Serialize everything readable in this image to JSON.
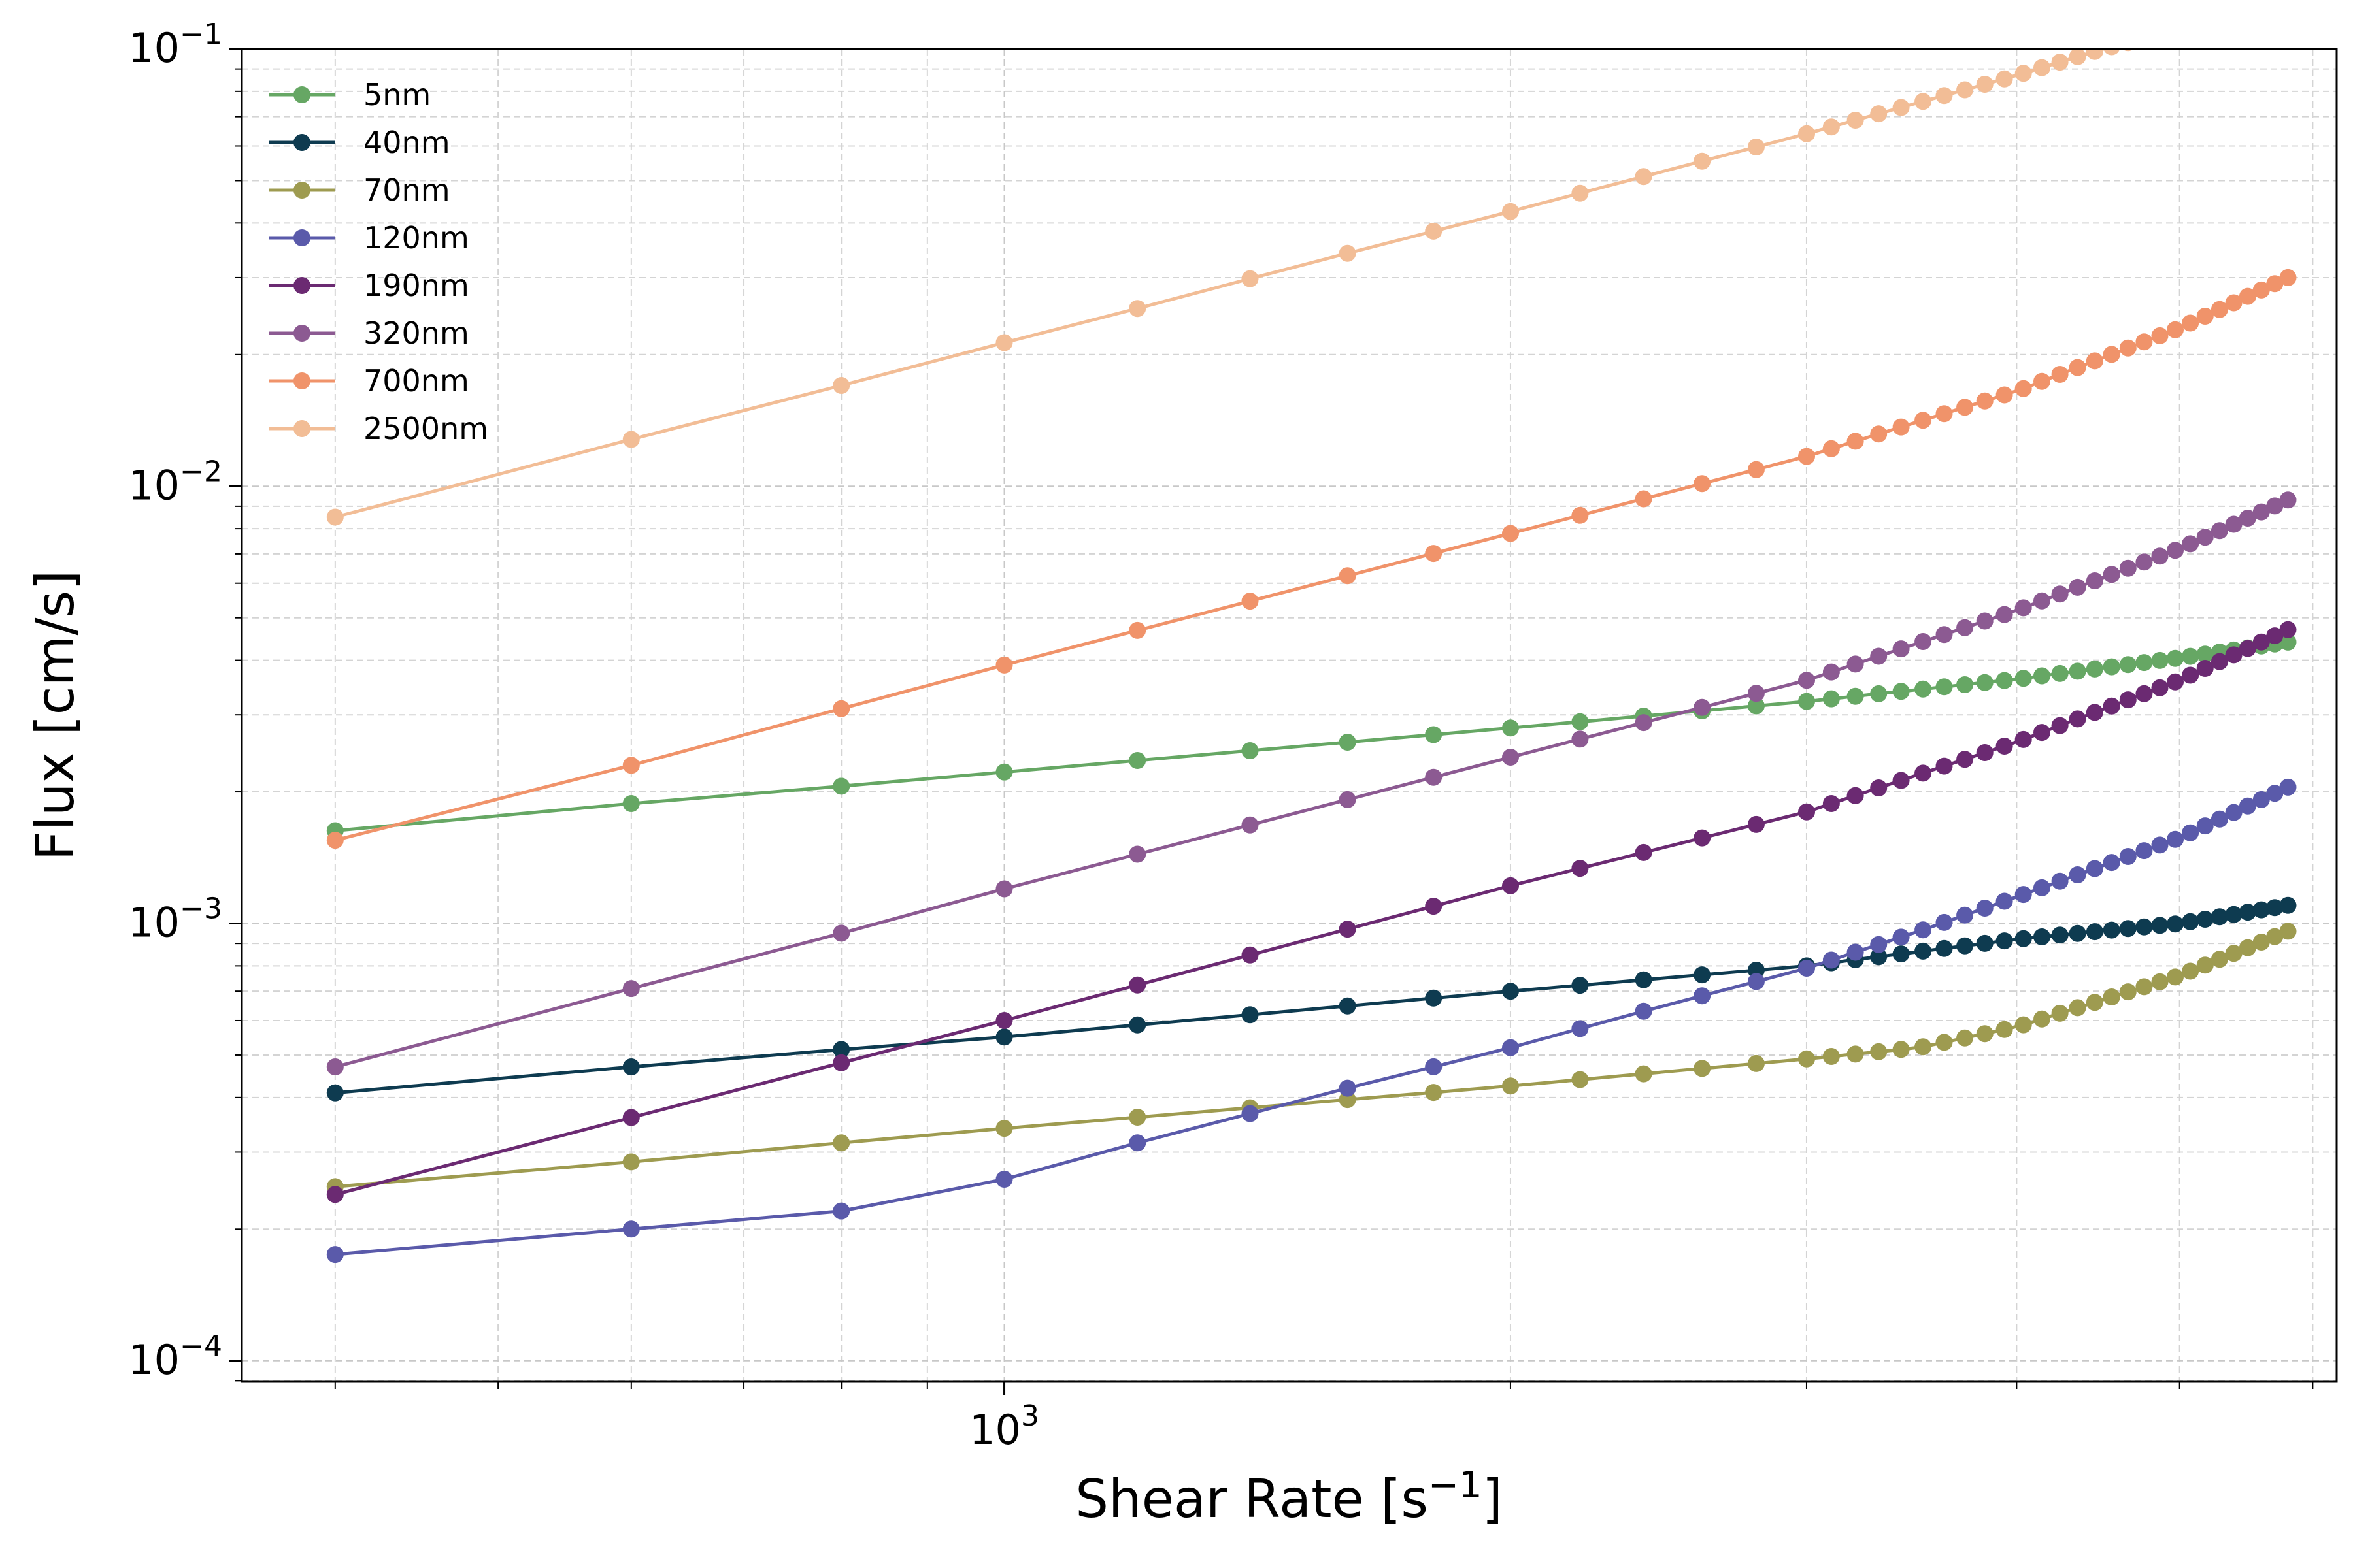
{
  "chart_data": {
    "type": "line",
    "xlabel": "Shear Rate [s",
    "xlabel_sup": "−1",
    "xlabel_end": "]",
    "ylabel": "Flux [cm/s]",
    "xscale": "log",
    "yscale": "log",
    "xlim": [
      352,
      6200
    ],
    "ylim": [
      8.95e-05,
      0.1
    ],
    "grid": true,
    "legend_position": "top-left",
    "x_ticks": [
      {
        "value": 1000,
        "base": "10",
        "exp": "3"
      }
    ],
    "y_ticks": [
      {
        "value": 0.0001,
        "base": "10",
        "exp": "−4"
      },
      {
        "value": 0.001,
        "base": "10",
        "exp": "−3"
      },
      {
        "value": 0.01,
        "base": "10",
        "exp": "−2"
      },
      {
        "value": 0.1,
        "base": "10",
        "exp": "−1"
      }
    ],
    "series": [
      {
        "name": "5nm",
        "color": "#66a764",
        "x_start": 400,
        "dense_from": 3000,
        "dense_to": 5800,
        "dense_count": 28,
        "anchors": [
          [
            400,
            0.00163
          ],
          [
            600,
            0.00188
          ],
          [
            800,
            0.00206
          ],
          [
            1000,
            0.00222
          ],
          [
            2000,
            0.0028
          ],
          [
            3000,
            0.00322
          ],
          [
            4000,
            0.00362
          ],
          [
            5000,
            0.00405
          ],
          [
            5800,
            0.0044
          ]
        ]
      },
      {
        "name": "40nm",
        "color": "#0e3b50",
        "x_start": 400,
        "dense_from": 3000,
        "dense_to": 5800,
        "dense_count": 28,
        "anchors": [
          [
            400,
            0.00041
          ],
          [
            600,
            0.00047
          ],
          [
            800,
            0.000515
          ],
          [
            1000,
            0.00055
          ],
          [
            2000,
            0.0007
          ],
          [
            3000,
            0.0008
          ],
          [
            4000,
            0.00092
          ],
          [
            5000,
            0.001
          ],
          [
            5800,
            0.0011
          ]
        ]
      },
      {
        "name": "70nm",
        "color": "#9e9b50",
        "x_start": 400,
        "dense_from": 3000,
        "dense_to": 5800,
        "dense_count": 28,
        "anchors": [
          [
            400,
            0.00025
          ],
          [
            600,
            0.000285
          ],
          [
            800,
            0.000315
          ],
          [
            1000,
            0.00034
          ],
          [
            2000,
            0.000425
          ],
          [
            3000,
            0.00049
          ],
          [
            3500,
            0.00052
          ],
          [
            4000,
            0.00058
          ],
          [
            5000,
            0.00076
          ],
          [
            5800,
            0.00096
          ]
        ]
      },
      {
        "name": "120nm",
        "color": "#5a5aaa",
        "x_start": 400,
        "dense_from": 3000,
        "dense_to": 5800,
        "dense_count": 28,
        "anchors": [
          [
            400,
            0.000175
          ],
          [
            600,
            0.0002
          ],
          [
            800,
            0.00022
          ],
          [
            1000,
            0.00026
          ],
          [
            1200,
            0.000315
          ],
          [
            1600,
            0.00042
          ],
          [
            2000,
            0.00052
          ],
          [
            2400,
            0.00063
          ],
          [
            3000,
            0.00079
          ],
          [
            3500,
            0.00096
          ],
          [
            4000,
            0.00115
          ],
          [
            5000,
            0.00157
          ],
          [
            5800,
            0.00205
          ]
        ]
      },
      {
        "name": "190nm",
        "color": "#6b2a72",
        "x_start": 400,
        "dense_from": 3000,
        "dense_to": 5800,
        "dense_count": 28,
        "anchors": [
          [
            400,
            0.00024
          ],
          [
            600,
            0.00036
          ],
          [
            800,
            0.00048
          ],
          [
            1000,
            0.0006
          ],
          [
            2000,
            0.00122
          ],
          [
            3000,
            0.0018
          ],
          [
            4000,
            0.0026
          ],
          [
            5000,
            0.0036
          ],
          [
            5800,
            0.0047
          ]
        ]
      },
      {
        "name": "320nm",
        "color": "#8c5a92",
        "x_start": 400,
        "dense_from": 3000,
        "dense_to": 5800,
        "dense_count": 28,
        "anchors": [
          [
            400,
            0.00047
          ],
          [
            600,
            0.00071
          ],
          [
            800,
            0.00095
          ],
          [
            1000,
            0.0012
          ],
          [
            2000,
            0.0024
          ],
          [
            3000,
            0.0036
          ],
          [
            4000,
            0.0052
          ],
          [
            5000,
            0.0072
          ],
          [
            5800,
            0.0093
          ]
        ]
      },
      {
        "name": "700nm",
        "color": "#f0936a",
        "x_start": 400,
        "dense_from": 3000,
        "dense_to": 5800,
        "dense_count": 28,
        "anchors": [
          [
            400,
            0.00155
          ],
          [
            600,
            0.0023
          ],
          [
            800,
            0.0031
          ],
          [
            1000,
            0.0039
          ],
          [
            2000,
            0.0078
          ],
          [
            3000,
            0.0117
          ],
          [
            4000,
            0.0165
          ],
          [
            5000,
            0.023
          ],
          [
            5800,
            0.03
          ]
        ]
      },
      {
        "name": "2500nm",
        "color": "#f2bd96",
        "x_start": 400,
        "dense_from": 3000,
        "dense_to": 5800,
        "dense_count": 28,
        "anchors": [
          [
            400,
            0.0085
          ],
          [
            600,
            0.0128
          ],
          [
            800,
            0.017
          ],
          [
            1000,
            0.0213
          ],
          [
            1200,
            0.0255
          ],
          [
            1500,
            0.032
          ],
          [
            2000,
            0.0425
          ],
          [
            3000,
            0.064
          ],
          [
            4000,
            0.087
          ],
          [
            4500,
            0.1
          ],
          [
            5800,
            0.128
          ]
        ]
      }
    ]
  }
}
